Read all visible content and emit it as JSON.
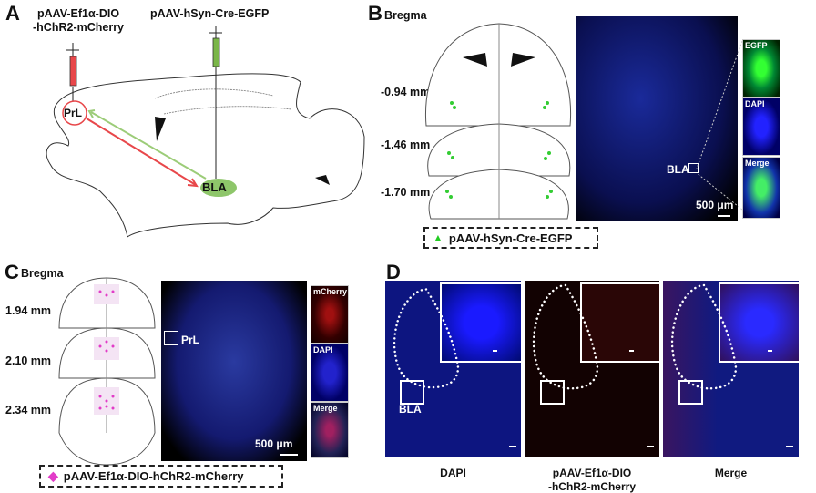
{
  "panel_a": {
    "letter": "A",
    "virus_left_line1": "pAAV-Ef1α-DIO",
    "virus_left_line2": "-hChR2-mCherry",
    "virus_right": "pAAV-hSyn-Cre-EGFP",
    "region_prl": "PrL",
    "region_bla": "BLA",
    "colors": {
      "red": "#e8474a",
      "green": "#7ab648"
    }
  },
  "panel_b": {
    "letter": "B",
    "bregma": "Bregma",
    "levels": [
      "-0.94 mm",
      "-1.46 mm",
      "-1.70 mm"
    ],
    "region": "BLA",
    "scale": "500 μm",
    "insets": [
      "EGFP",
      "DAPI",
      "Merge"
    ],
    "legend": "pAAV-hSyn-Cre-EGFP",
    "legend_marker": "green-triangle"
  },
  "panel_c": {
    "letter": "C",
    "bregma": "Bregma",
    "levels": [
      "1.94 mm",
      "2.10 mm",
      "2.34 mm"
    ],
    "region": "PrL",
    "scale": "500 μm",
    "insets": [
      "mCherry",
      "DAPI",
      "Merge"
    ],
    "legend": "pAAV-Ef1α-DIO-hChR2-mCherry",
    "legend_marker": "magenta-diamond"
  },
  "panel_d": {
    "letter": "D",
    "region": "BLA",
    "captions": [
      {
        "line1": "DAPI",
        "line2": ""
      },
      {
        "line1": "pAAV-Ef1α-DIO",
        "line2": "-hChR2-mCherry"
      },
      {
        "line1": "Merge",
        "line2": ""
      }
    ]
  }
}
